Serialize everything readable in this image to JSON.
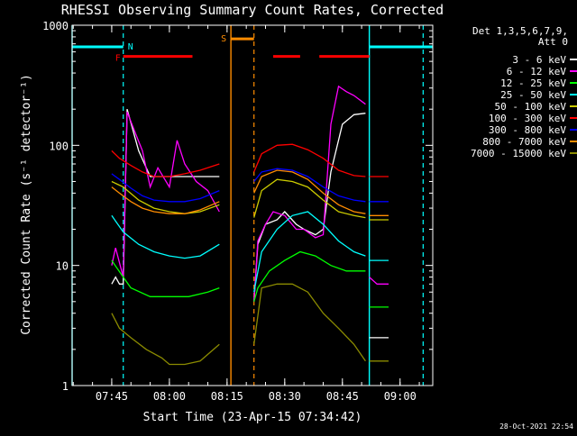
{
  "chart_data": {
    "type": "line",
    "title": "RHESSI Observing Summary Count Rates, Corrected",
    "xlabel": "Start Time (23-Apr-15 07:34:42)",
    "ylabel": "Corrected Count Rate (s⁻¹ detector⁻¹)",
    "y_scale": "log",
    "ylim": [
      1,
      1000
    ],
    "y_ticks": [
      1,
      10,
      100,
      1000
    ],
    "y_tick_labels": [
      "1",
      "10",
      "100",
      "1000"
    ],
    "xlim": [
      "07:34:42",
      "09:08:30"
    ],
    "x_ticks": [
      "07:45",
      "08:00",
      "08:15",
      "08:30",
      "08:45",
      "09:00"
    ],
    "timestamp": "28-Oct-2021 22:54",
    "legend": {
      "placement": "right",
      "header": [
        "Det 1,3,5,6,7,9,",
        "Att 0"
      ]
    },
    "flags": [
      {
        "label": "N",
        "color": "#00ffff"
      },
      {
        "label": "F",
        "color": "#ff0000"
      },
      {
        "label": "S",
        "color": "#ff8c00"
      }
    ],
    "vertical_lines": [
      {
        "time": "07:34:42",
        "style": "solid",
        "color": "#00ffff"
      },
      {
        "time": "07:48:00",
        "style": "dashed",
        "color": "#00ffff"
      },
      {
        "time": "08:16:00",
        "style": "solid",
        "color": "#ff8c00"
      },
      {
        "time": "08:22:00",
        "style": "dashed",
        "color": "#ff8c00"
      },
      {
        "time": "08:52:00",
        "style": "solid",
        "color": "#00ffff"
      },
      {
        "time": "09:06:00",
        "style": "dashed",
        "color": "#00ffff"
      }
    ],
    "flag_bars": [
      {
        "name": "N",
        "color": "#00ffff",
        "segments": [
          [
            "07:34:42",
            "07:48:00"
          ],
          [
            "08:52:00",
            "09:08:30"
          ]
        ],
        "level": 660
      },
      {
        "name": "F",
        "color": "#ff0000",
        "segments": [
          [
            "07:48:00",
            "08:06:00"
          ],
          [
            "08:27:00",
            "08:34:00"
          ],
          [
            "08:39:00",
            "08:52:00"
          ]
        ],
        "level": 550
      },
      {
        "name": "S",
        "color": "#ff8c00",
        "segments": [
          [
            "08:16:00",
            "08:22:00"
          ]
        ],
        "level": 770
      }
    ],
    "series": [
      {
        "name": "3 - 6 keV",
        "color": "#ffffff",
        "segments": [
          {
            "t": [
              "07:45",
              "07:46",
              "07:47",
              "07:48",
              "07:49",
              "07:52",
              "07:55",
              "07:58",
              "08:00",
              "08:05",
              "08:10",
              "08:13"
            ],
            "v": [
              7,
              8,
              7,
              7,
              200,
              90,
              55,
              55,
              55,
              55,
              55,
              55
            ]
          },
          {
            "t": [
              "08:22",
              "08:23",
              "08:25",
              "08:28",
              "08:30",
              "08:33",
              "08:35",
              "08:38",
              "08:40",
              "08:42",
              "08:45",
              "08:48",
              "08:51"
            ],
            "v": [
              5,
              15,
              22,
              24,
              28,
              22,
              20,
              18,
              20,
              60,
              150,
              180,
              185
            ]
          },
          {
            "t": [
              "08:52",
              "08:57"
            ],
            "v": [
              2.5,
              2.5
            ]
          }
        ]
      },
      {
        "name": "6 - 12 keV",
        "color": "#ff00ff",
        "segments": [
          {
            "t": [
              "07:45",
              "07:46",
              "07:48",
              "07:49",
              "07:51",
              "07:53",
              "07:55",
              "07:57",
              "08:00",
              "08:02",
              "08:04",
              "08:07",
              "08:10",
              "08:13"
            ],
            "v": [
              10,
              14,
              8,
              190,
              130,
              90,
              45,
              65,
              45,
              110,
              70,
              50,
              42,
              28
            ]
          },
          {
            "t": [
              "08:22",
              "08:23",
              "08:25",
              "08:27",
              "08:30",
              "08:33",
              "08:35",
              "08:38",
              "08:40",
              "08:42",
              "08:44",
              "08:46",
              "08:48",
              "08:51"
            ],
            "v": [
              5,
              16,
              22,
              28,
              26,
              20,
              20,
              17,
              18,
              150,
              310,
              280,
              260,
              220
            ]
          },
          {
            "t": [
              "08:52",
              "08:54",
              "08:57"
            ],
            "v": [
              8,
              7,
              7
            ]
          }
        ]
      },
      {
        "name": "12 - 25 keV",
        "color": "#00ff00",
        "segments": [
          {
            "t": [
              "07:45",
              "07:48",
              "07:50",
              "07:55",
              "08:00",
              "08:05",
              "08:10",
              "08:13"
            ],
            "v": [
              11,
              8,
              6.5,
              5.5,
              5.5,
              5.5,
              6,
              6.5
            ]
          },
          {
            "t": [
              "08:22",
              "08:23",
              "08:26",
              "08:30",
              "08:34",
              "08:38",
              "08:42",
              "08:46",
              "08:50",
              "08:51"
            ],
            "v": [
              5,
              6.5,
              9,
              11,
              13,
              12,
              10,
              9,
              9,
              9
            ]
          },
          {
            "t": [
              "08:52",
              "08:57"
            ],
            "v": [
              4.5,
              4.5
            ]
          }
        ]
      },
      {
        "name": "25 - 50 keV",
        "color": "#00ffff",
        "segments": [
          {
            "t": [
              "07:45",
              "07:48",
              "07:52",
              "07:56",
              "08:00",
              "08:04",
              "08:08",
              "08:13"
            ],
            "v": [
              26,
              19,
              15,
              13,
              12,
              11.5,
              12,
              15
            ]
          },
          {
            "t": [
              "08:22",
              "08:24",
              "08:28",
              "08:32",
              "08:36",
              "08:40",
              "08:44",
              "08:48",
              "08:51"
            ],
            "v": [
              6,
              13,
              20,
              26,
              28,
              22,
              16,
              13,
              12
            ]
          },
          {
            "t": [
              "08:52",
              "08:57"
            ],
            "v": [
              11,
              11
            ]
          }
        ]
      },
      {
        "name": "50 - 100 keV",
        "color": "#cccc00",
        "segments": [
          {
            "t": [
              "07:45",
              "07:48",
              "07:52",
              "07:56",
              "08:00",
              "08:04",
              "08:08",
              "08:13"
            ],
            "v": [
              50,
              45,
              35,
              30,
              28,
              27,
              28,
              32
            ]
          },
          {
            "t": [
              "08:22",
              "08:24",
              "08:28",
              "08:32",
              "08:36",
              "08:40",
              "08:44",
              "08:48",
              "08:51"
            ],
            "v": [
              25,
              42,
              52,
              50,
              45,
              35,
              28,
              26,
              25
            ]
          },
          {
            "t": [
              "08:52",
              "08:57"
            ],
            "v": [
              24,
              24
            ]
          }
        ]
      },
      {
        "name": "100 - 300 keV",
        "color": "#ff0000",
        "segments": [
          {
            "t": [
              "07:45",
              "07:47",
              "07:50",
              "07:53",
              "07:56",
              "08:00",
              "08:04",
              "08:08",
              "08:13"
            ],
            "v": [
              90,
              78,
              68,
              60,
              55,
              55,
              58,
              62,
              70
            ]
          },
          {
            "t": [
              "08:22",
              "08:24",
              "08:28",
              "08:32",
              "08:36",
              "08:40",
              "08:44",
              "08:48",
              "08:51"
            ],
            "v": [
              60,
              85,
              100,
              102,
              92,
              78,
              62,
              56,
              55
            ]
          },
          {
            "t": [
              "08:52",
              "08:57"
            ],
            "v": [
              55,
              55
            ]
          }
        ]
      },
      {
        "name": "300 - 800 keV",
        "color": "#0000ff",
        "segments": [
          {
            "t": [
              "07:45",
              "07:47",
              "07:50",
              "07:53",
              "07:56",
              "08:00",
              "08:04",
              "08:08",
              "08:13"
            ],
            "v": [
              58,
              52,
              44,
              38,
              35,
              34,
              34,
              36,
              42
            ]
          },
          {
            "t": [
              "08:22",
              "08:24",
              "08:28",
              "08:32",
              "08:36",
              "08:40",
              "08:44",
              "08:48",
              "08:51"
            ],
            "v": [
              50,
              60,
              64,
              62,
              55,
              45,
              38,
              35,
              34
            ]
          },
          {
            "t": [
              "08:52",
              "08:57"
            ],
            "v": [
              34,
              34
            ]
          }
        ]
      },
      {
        "name": "800 - 7000 keV",
        "color": "#ff8c00",
        "segments": [
          {
            "t": [
              "07:45",
              "07:47",
              "07:50",
              "07:53",
              "07:56",
              "08:00",
              "08:04",
              "08:08",
              "08:13"
            ],
            "v": [
              45,
              40,
              34,
              30,
              28,
              27,
              27,
              29,
              34
            ]
          },
          {
            "t": [
              "08:22",
              "08:24",
              "08:28",
              "08:32",
              "08:36",
              "08:40",
              "08:44",
              "08:48",
              "08:51"
            ],
            "v": [
              40,
              55,
              62,
              60,
              52,
              40,
              32,
              28,
              27
            ]
          },
          {
            "t": [
              "08:52",
              "08:57"
            ],
            "v": [
              26,
              26
            ]
          }
        ]
      },
      {
        "name": "7000 - 15000 keV",
        "color": "#8b8b00",
        "segments": [
          {
            "t": [
              "07:45",
              "07:47",
              "07:50",
              "07:54",
              "07:58",
              "08:00",
              "08:04",
              "08:08",
              "08:13"
            ],
            "v": [
              4,
              3,
              2.5,
              2,
              1.7,
              1.5,
              1.5,
              1.6,
              2.2
            ]
          },
          {
            "t": [
              "08:22",
              "08:24",
              "08:28",
              "08:32",
              "08:36",
              "08:40",
              "08:44",
              "08:48",
              "08:51"
            ],
            "v": [
              2.2,
              6.5,
              7,
              7,
              6,
              4,
              3,
              2.2,
              1.6
            ]
          },
          {
            "t": [
              "08:52",
              "08:57"
            ],
            "v": [
              1.6,
              1.6
            ]
          }
        ]
      }
    ]
  }
}
